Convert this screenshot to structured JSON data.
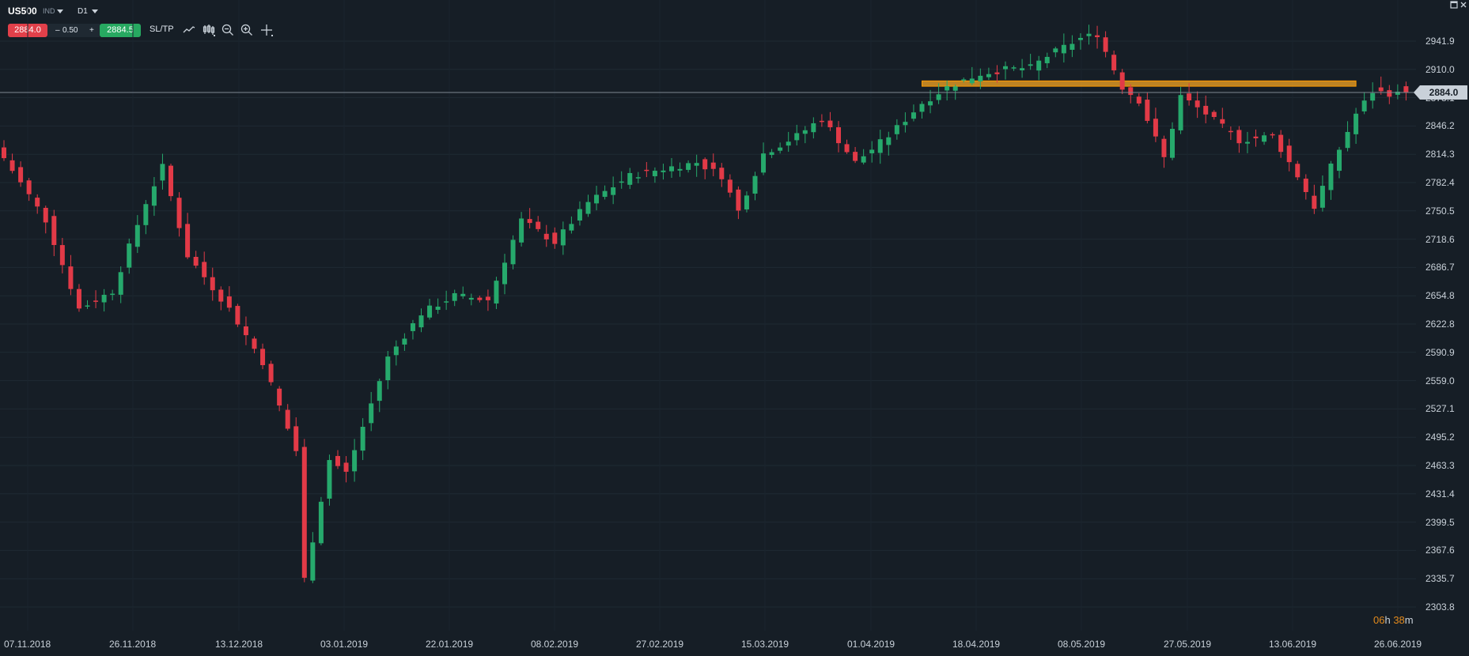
{
  "toolbar": {
    "symbol": "US500",
    "symbol_type": "IND",
    "timeframe": "D1",
    "sell_price": "2884.0",
    "spread_minus": "–",
    "spread_value": "0.50",
    "spread_plus": "+",
    "buy_price": "2884.5",
    "sltp_label": "SL/TP",
    "tools": [
      "line-chart-icon",
      "candles-icon",
      "zoom-out-icon",
      "zoom-in-icon",
      "crosshair-icon"
    ]
  },
  "current_price_label": "2884.0",
  "countdown": {
    "hours": "06",
    "h_unit": "h",
    "minutes": "38",
    "m_unit": "m"
  },
  "colors": {
    "up": "#26a96c",
    "down": "#e23a47",
    "background": "#161e26",
    "highlight": "#f5a623"
  },
  "chart_data": {
    "type": "candlestick",
    "symbol": "US500",
    "timeframe": "D1",
    "y_ticks": [
      "2941.9",
      "2910.0",
      "2878.1",
      "2846.2",
      "2814.3",
      "2782.4",
      "2750.5",
      "2718.6",
      "2686.7",
      "2654.8",
      "2622.8",
      "2590.9",
      "2559.0",
      "2527.1",
      "2495.2",
      "2463.3",
      "2431.4",
      "2399.5",
      "2367.6",
      "2335.7",
      "2303.8"
    ],
    "ylim": [
      2303.8,
      2941.9
    ],
    "x_ticks": [
      "07.11.2018",
      "26.11.2018",
      "13.12.2018",
      "03.01.2019",
      "22.01.2019",
      "08.02.2019",
      "27.02.2019",
      "15.03.2019",
      "01.04.2019",
      "18.04.2019",
      "08.05.2019",
      "27.05.2019",
      "13.06.2019",
      "26.06.2019"
    ],
    "last_price": 2884.0,
    "resistance_zone": [
      2891,
      2897
    ],
    "waypoints": [
      [
        0,
        2810
      ],
      [
        5,
        2740
      ],
      [
        9,
        2640
      ],
      [
        13,
        2660
      ],
      [
        17,
        2760
      ],
      [
        19,
        2800
      ],
      [
        22,
        2700
      ],
      [
        27,
        2640
      ],
      [
        31,
        2580
      ],
      [
        35,
        2480
      ],
      [
        36,
        2335
      ],
      [
        39,
        2470
      ],
      [
        41,
        2455
      ],
      [
        46,
        2585
      ],
      [
        50,
        2635
      ],
      [
        54,
        2655
      ],
      [
        58,
        2650
      ],
      [
        62,
        2740
      ],
      [
        66,
        2715
      ],
      [
        70,
        2760
      ],
      [
        75,
        2790
      ],
      [
        80,
        2800
      ],
      [
        83,
        2805
      ],
      [
        86,
        2790
      ],
      [
        88,
        2750
      ],
      [
        91,
        2815
      ],
      [
        95,
        2835
      ],
      [
        98,
        2855
      ],
      [
        102,
        2805
      ],
      [
        106,
        2835
      ],
      [
        110,
        2872
      ],
      [
        113,
        2890
      ],
      [
        117,
        2905
      ],
      [
        120,
        2910
      ],
      [
        123,
        2912
      ],
      [
        125,
        2925
      ],
      [
        129,
        2945
      ],
      [
        131,
        2950
      ],
      [
        134,
        2890
      ],
      [
        136,
        2875
      ],
      [
        139,
        2810
      ],
      [
        141,
        2880
      ],
      [
        144,
        2860
      ],
      [
        148,
        2830
      ],
      [
        152,
        2835
      ],
      [
        155,
        2790
      ],
      [
        157,
        2755
      ],
      [
        159,
        2800
      ],
      [
        162,
        2860
      ],
      [
        164,
        2885
      ],
      [
        167,
        2882
      ],
      [
        168,
        2884.0
      ]
    ]
  }
}
